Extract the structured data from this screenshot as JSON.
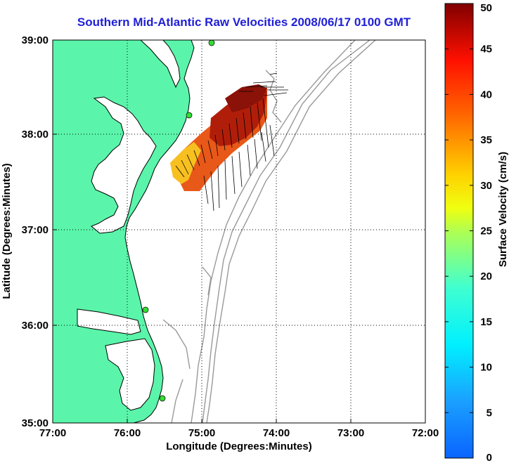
{
  "title": "Southern Mid-Atlantic Raw Velocities 2008/06/17 0100 GMT",
  "map": {
    "x_axis_label": "Longitude (Degrees:Minutes)",
    "y_axis_label": "Latitude (Degrees:Minutes)",
    "x_ticks": [
      "77:00",
      "76:00",
      "75:00",
      "74:00",
      "73:00",
      "72:00"
    ],
    "y_ticks": [
      "39:00",
      "38:00",
      "37:00",
      "36:00",
      "35:00"
    ],
    "lon_range": [
      -77,
      -72
    ],
    "lat_range": [
      35,
      39
    ],
    "grid": "dotted",
    "land_color": "#5af5aa",
    "station_color": "#33dd33"
  },
  "colorbar": {
    "label": "Surface Velocity (cm/s)",
    "min": 0,
    "max": 50,
    "tick_labels": [
      "0",
      "5",
      "10",
      "15",
      "20",
      "25",
      "30",
      "35",
      "40",
      "45",
      "50"
    ],
    "colormap": "jet"
  }
}
